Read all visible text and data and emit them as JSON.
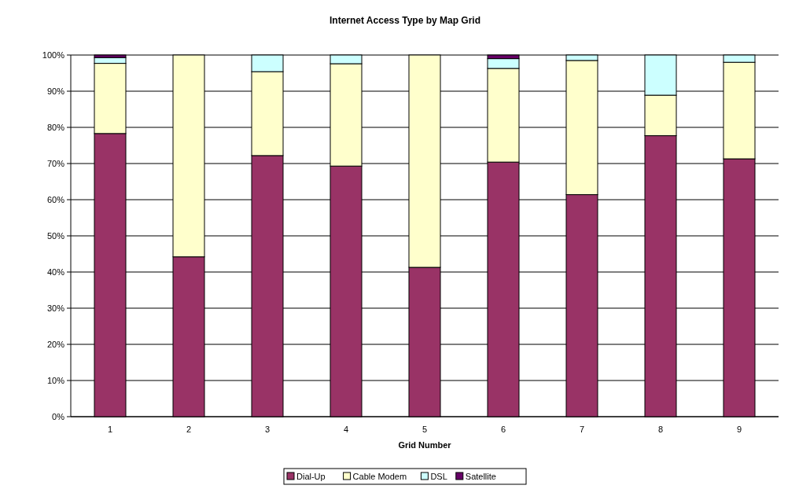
{
  "chart_data": {
    "type": "bar",
    "title": "Internet Access Type by Map Grid",
    "xlabel": "Grid Number",
    "categories": [
      "1",
      "2",
      "3",
      "4",
      "5",
      "6",
      "7",
      "8",
      "9"
    ],
    "stacked": true,
    "series": [
      {
        "name": "Dial-Up",
        "color": "#993366",
        "values": [
          78.3,
          44.2,
          72.2,
          69.3,
          41.3,
          70.4,
          61.4,
          77.7,
          71.3
        ]
      },
      {
        "name": "Cable Modem",
        "color": "#ffffcc",
        "values": [
          19.4,
          55.8,
          23.2,
          28.3,
          58.7,
          25.9,
          37.1,
          11.2,
          26.7
        ]
      },
      {
        "name": "DSL",
        "color": "#ccffff",
        "values": [
          1.6,
          0,
          4.6,
          2.4,
          0,
          2.7,
          1.5,
          11.1,
          2.0
        ]
      },
      {
        "name": "Satellite",
        "color": "#660066",
        "values": [
          0.7,
          0,
          0,
          0,
          0,
          1.0,
          0,
          0,
          0
        ]
      }
    ],
    "ylim": [
      0,
      100
    ],
    "yticks": [
      {
        "value": 0,
        "label": "0%"
      },
      {
        "value": 10,
        "label": "10%"
      },
      {
        "value": 20,
        "label": "20%"
      },
      {
        "value": 30,
        "label": "30%"
      },
      {
        "value": 40,
        "label": "40%"
      },
      {
        "value": 50,
        "label": "50%"
      },
      {
        "value": 60,
        "label": "60%"
      },
      {
        "value": 70,
        "label": "70%"
      },
      {
        "value": 80,
        "label": "80%"
      },
      {
        "value": 90,
        "label": "90%"
      },
      {
        "value": 100,
        "label": "100%"
      }
    ],
    "grid": "y",
    "legend": "bottom"
  }
}
